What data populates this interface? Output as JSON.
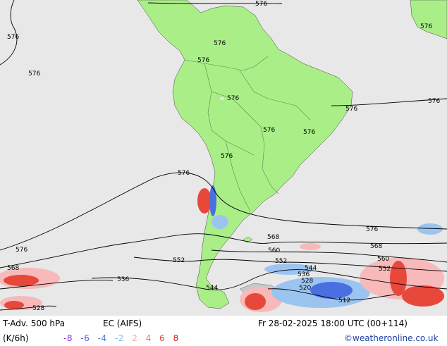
{
  "map": {
    "colors": {
      "ocean": "#e8e8e8",
      "land": "#aaee88",
      "land_outside": "#d8d8d8",
      "warm_light": "#f7b9b9",
      "warm_strong": "#e8483a",
      "cold_light": "#9cc4f0",
      "cold_strong": "#4a6fe0",
      "isoline": "#000000"
    },
    "isoline_labels": [
      "576",
      "576",
      "576",
      "576",
      "576",
      "576",
      "576",
      "576",
      "576",
      "576",
      "576",
      "576",
      "576",
      "576",
      "576",
      "568",
      "568",
      "568",
      "560",
      "560",
      "552",
      "552",
      "552",
      "544",
      "544",
      "536",
      "536",
      "528",
      "528",
      "520",
      "512"
    ]
  },
  "footer": {
    "title": "T-Adv. 500 hPa",
    "model": "EC (AIFS)",
    "valid_time": "Fr 28-02-2025 18:00 UTC (00+114)",
    "units": "(K/6h)",
    "legend_values": [
      {
        "text": "-8",
        "color": "#8a2be2"
      },
      {
        "text": "-6",
        "color": "#5a55e0"
      },
      {
        "text": "-4",
        "color": "#4a7fe0"
      },
      {
        "text": "-2",
        "color": "#8ab8f0"
      },
      {
        "text": "2",
        "color": "#f4a6a6"
      },
      {
        "text": "4",
        "color": "#f07070"
      },
      {
        "text": "6",
        "color": "#e84030"
      },
      {
        "text": "8",
        "color": "#c81e1e"
      }
    ],
    "credit": "©weatheronline.co.uk"
  }
}
